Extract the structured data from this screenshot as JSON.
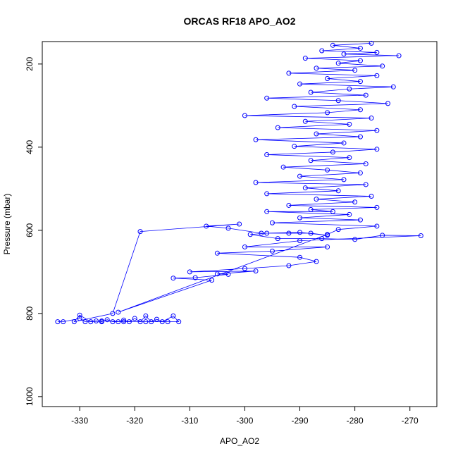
{
  "chart_data": {
    "type": "line",
    "title": "ORCAS RF18 APO_AO2",
    "x_label": "APO_AO2",
    "y_label": "Pressure (mbar)",
    "color": "#0000ff",
    "xlim": [
      -336.8,
      -265.1
    ],
    "ylim": [
      1024,
      146
    ],
    "xticks": [
      -330,
      -320,
      -310,
      -300,
      -290,
      -280,
      -270
    ],
    "yticks": [
      200,
      400,
      600,
      800,
      1000
    ],
    "x": [
      -334,
      -333,
      -330,
      -329,
      -327,
      -326,
      -325,
      -324,
      -323,
      -322,
      -321,
      -320,
      -319,
      -318,
      -317,
      -316,
      -315,
      -313,
      -312,
      -314,
      -318,
      -322,
      -326,
      -328,
      -330,
      -331,
      -324,
      -319,
      -301,
      -307,
      -303,
      -297,
      -292,
      -288,
      -285,
      -290,
      -296,
      -299,
      -294,
      -286,
      -280,
      -275,
      -268,
      -290,
      -300,
      -285,
      -295,
      -305,
      -290,
      -287,
      -292,
      -300,
      -310,
      -298,
      -305,
      -303,
      -309,
      -313,
      -306,
      -323,
      -285,
      -283,
      -276,
      -295,
      -279,
      -290,
      -281,
      -296,
      -284,
      -288,
      -276,
      -292,
      -280,
      -287,
      -277,
      -296,
      -283,
      -289,
      -278,
      -298,
      -282,
      -290,
      -279,
      -285,
      -293,
      -278,
      -288,
      -281,
      -296,
      -284,
      -276,
      -291,
      -282,
      -298,
      -279,
      -287,
      -276,
      -294,
      -281,
      -289,
      -277,
      -300,
      -285,
      -279,
      -291,
      -274,
      -283,
      -296,
      -278,
      -288,
      -281,
      -273,
      -290,
      -279,
      -285,
      -276,
      -292,
      -280,
      -287,
      -275,
      -283,
      -279,
      -289,
      -272,
      -282,
      -276,
      -286,
      -279,
      -284,
      -277
    ],
    "values": [
      820,
      820,
      812,
      820,
      818,
      820,
      815,
      820,
      820,
      816,
      820,
      812,
      820,
      806,
      820,
      814,
      820,
      806,
      820,
      820,
      820,
      820,
      818,
      820,
      804,
      820,
      800,
      603,
      585,
      590,
      595,
      607,
      607,
      607,
      612,
      605,
      607,
      610,
      620,
      620,
      622,
      612,
      613,
      625,
      640,
      640,
      650,
      655,
      665,
      675,
      685,
      692,
      700,
      698,
      705,
      706,
      714,
      715,
      720,
      797,
      610,
      598,
      590,
      582,
      575,
      570,
      562,
      555,
      555,
      550,
      545,
      540,
      532,
      525,
      518,
      512,
      505,
      498,
      490,
      485,
      478,
      470,
      462,
      455,
      448,
      440,
      432,
      425,
      418,
      412,
      405,
      398,
      390,
      382,
      375,
      368,
      360,
      353,
      345,
      338,
      330,
      324,
      317,
      310,
      302,
      295,
      288,
      282,
      275,
      268,
      260,
      255,
      248,
      242,
      235,
      228,
      222,
      215,
      210,
      205,
      198,
      192,
      186,
      180,
      176,
      172,
      168,
      162,
      155,
      150
    ]
  }
}
